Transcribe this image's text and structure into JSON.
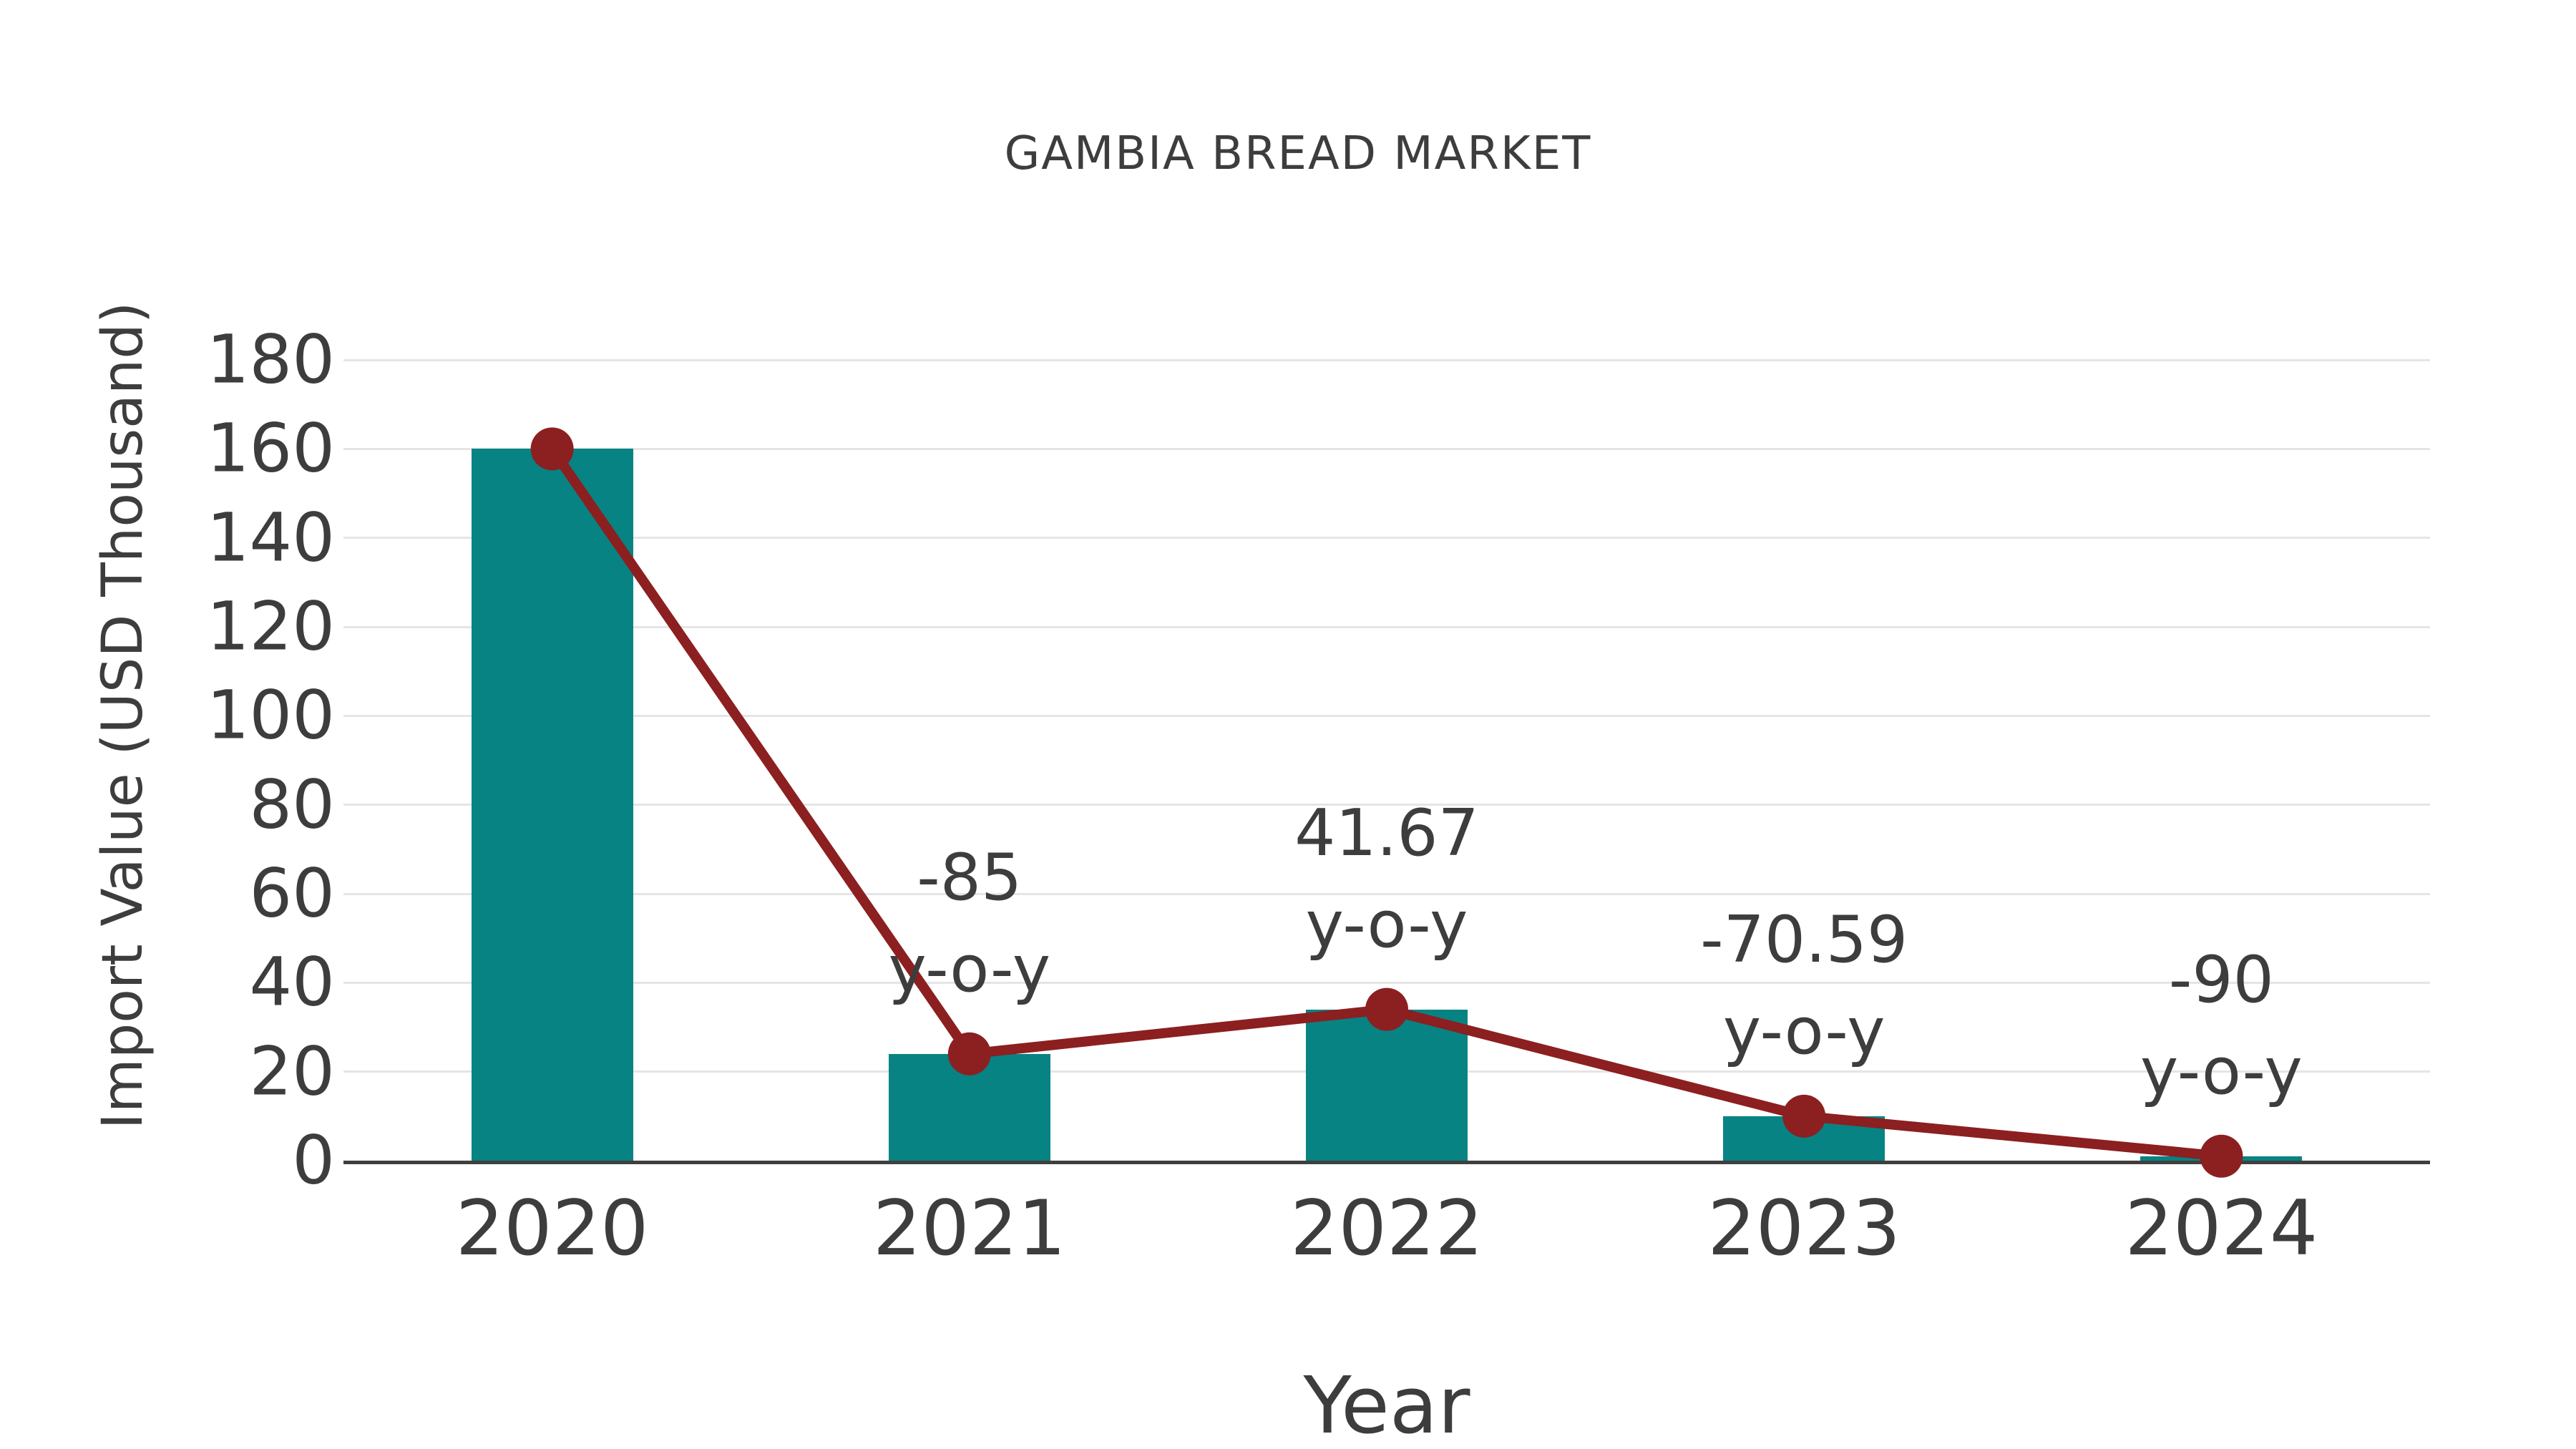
{
  "chart_data": {
    "type": "bar",
    "subtype": "bar-with-line-overlay",
    "title": "GAMBIA BREAD MARKET",
    "xlabel": "Year",
    "ylabel": "Import Value (USD Thousand)",
    "categories": [
      "2020",
      "2021",
      "2022",
      "2023",
      "2024"
    ],
    "series": [
      {
        "name": "Import Value bars",
        "type": "bar",
        "values": [
          160,
          24,
          34,
          10,
          1
        ]
      },
      {
        "name": "Import Value trend line",
        "type": "line",
        "values": [
          160,
          24,
          34,
          10,
          1
        ]
      }
    ],
    "annotations": [
      {
        "category": "2021",
        "value_label": "-85",
        "sub_label": "y-o-y"
      },
      {
        "category": "2022",
        "value_label": "41.67",
        "sub_label": "y-o-y"
      },
      {
        "category": "2023",
        "value_label": "-70.59",
        "sub_label": "y-o-y"
      },
      {
        "category": "2024",
        "value_label": "-90",
        "sub_label": "y-o-y"
      }
    ],
    "yticks": [
      0,
      20,
      40,
      60,
      80,
      100,
      120,
      140,
      160,
      180
    ],
    "ylim": [
      0,
      180
    ],
    "grid": "horizontal",
    "legend": "none",
    "colors": {
      "bar": "#078383",
      "line": "#8c1f20",
      "marker": "#8c1f20",
      "text": "#3d3d3d",
      "grid": "#e5e5e5",
      "axis": "#3f3f3f",
      "background": "#ffffff"
    }
  }
}
